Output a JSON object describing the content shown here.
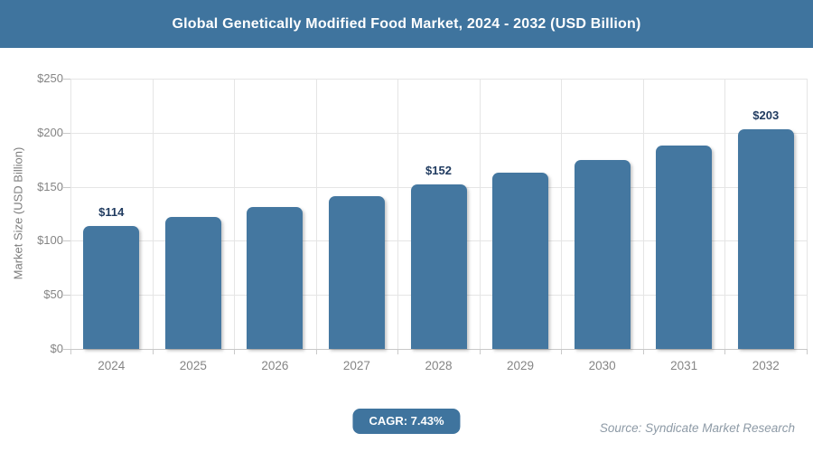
{
  "header": {
    "title": "Global Genetically Modified Food Market, 2024 - 2032 (USD Billion)"
  },
  "chart_data": {
    "type": "bar",
    "title": "Global Genetically Modified Food Market, 2024 - 2032 (USD Billion)",
    "xlabel": "",
    "ylabel": "Market Size (USD Billion)",
    "categories": [
      "2024",
      "2025",
      "2026",
      "2027",
      "2028",
      "2029",
      "2030",
      "2031",
      "2032"
    ],
    "values": [
      114,
      122,
      131,
      141,
      152,
      163,
      175,
      188,
      203
    ],
    "annotations": [
      {
        "index": 0,
        "text": "$114"
      },
      {
        "index": 4,
        "text": "$152"
      },
      {
        "index": 8,
        "text": "$203"
      }
    ],
    "ylim": [
      0,
      250
    ],
    "yticks": [
      0,
      50,
      100,
      150,
      200,
      250
    ],
    "ytick_labels": [
      "$0",
      "$50",
      "$100",
      "$150",
      "$200",
      "$250"
    ],
    "grid": true,
    "legend": "none",
    "colors": {
      "bar": "#4477A0",
      "header_bg": "#3F749E",
      "badge_bg": "#3F749E",
      "annotation_text": "#1F3A5F"
    }
  },
  "footer": {
    "cagr_label": "CAGR: 7.43%",
    "source": "Source: Syndicate Market Research"
  }
}
